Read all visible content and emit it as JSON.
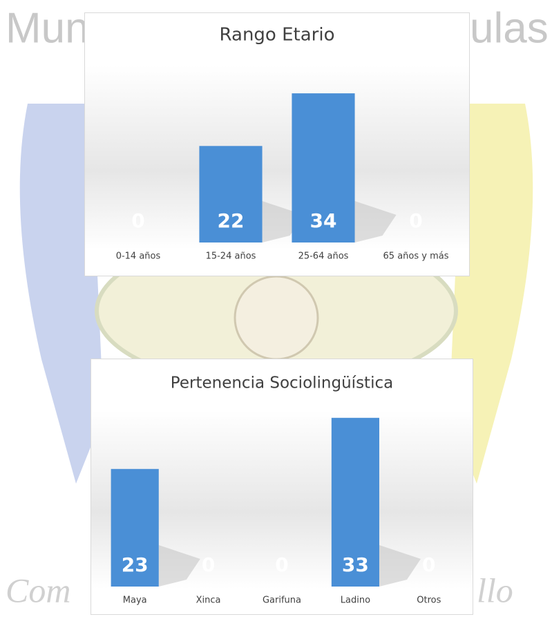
{
  "background": {
    "texts": [
      "Mun",
      "ulas",
      "Com",
      "llo"
    ]
  },
  "chart_data": [
    {
      "type": "bar",
      "title": "Rango Etario",
      "categories": [
        "0-14 años",
        "15-24 años",
        "25-64 años",
        "65 años y más"
      ],
      "values": [
        0,
        22,
        34,
        0
      ],
      "color": "#4a8fd6",
      "ylim": [
        0,
        40
      ]
    },
    {
      "type": "bar",
      "title": "Pertenencia Sociolingüística",
      "categories": [
        "Maya",
        "Xinca",
        "Garifuna",
        "Ladino",
        "Otros"
      ],
      "values": [
        23,
        0,
        0,
        33,
        0
      ],
      "color": "#4a8fd6",
      "ylim": [
        0,
        40
      ]
    }
  ]
}
